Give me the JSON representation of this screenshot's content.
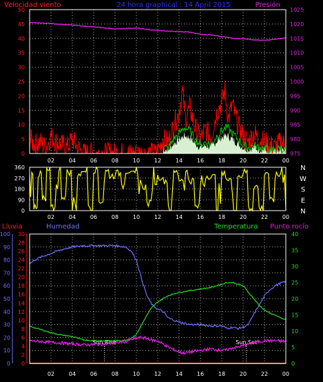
{
  "header": {
    "left_label": "Velocidad viento",
    "title": "24 hora graphical : 14 April 2015",
    "right_label": "Presión"
  },
  "colors": {
    "wind_left_axis": "#ff2020",
    "wind_series": "#ff0000",
    "gust_series": "#00d000",
    "wind_band": "#d8f0d0",
    "pressure": "#e020e0",
    "title": "#3030ff",
    "direction": "#ffff00",
    "rain": "#ff2020",
    "humidity": "#7070ff",
    "temperature": "#20e020",
    "dewpoint": "#e020e0",
    "axis_text": "#ffffff",
    "grid": "#ffffff"
  },
  "chart_data": [
    {
      "type": "line",
      "panel": "wind_pressure",
      "xlabel": "",
      "x_ticks": [
        "02",
        "04",
        "06",
        "08",
        "10",
        "12",
        "14",
        "16",
        "18",
        "20",
        "22",
        "00"
      ],
      "y_left": {
        "label": "Velocidad viento",
        "ticks": [
          "0",
          "5",
          "10",
          "15",
          "20",
          "25",
          "30",
          "35",
          "40",
          "45",
          "50"
        ],
        "range": [
          0,
          50
        ]
      },
      "y_right": {
        "label": "Presión",
        "ticks": [
          "975",
          "980",
          "985",
          "990",
          "995",
          "1000",
          "1005",
          "1010",
          "1015",
          "1020",
          "1025"
        ],
        "range": [
          975,
          1025
        ]
      },
      "series": [
        {
          "name": "Presión",
          "axis": "right",
          "x": [
            0,
            2,
            4,
            6,
            8,
            10,
            11,
            12,
            13,
            14,
            15,
            16,
            17,
            18,
            19,
            20,
            21,
            22,
            23,
            24
          ],
          "values": [
            1020.5,
            1020.2,
            1019.6,
            1019.0,
            1018.3,
            1018.6,
            1018.1,
            1017.8,
            1017.5,
            1017.4,
            1017.2,
            1016.5,
            1016.2,
            1015.6,
            1015.1,
            1014.9,
            1014.5,
            1014.3,
            1014.7,
            1015.2
          ]
        },
        {
          "axis": "left",
          "x": [
            0,
            0.5,
            1,
            1.5,
            2,
            2.5,
            3,
            3.5,
            4,
            4.5,
            5,
            10,
            11.9,
            12.5,
            13,
            13.5,
            14,
            14.3,
            14.6,
            15,
            15.5,
            16,
            16.5,
            17,
            17.5,
            18,
            18.3,
            18.6,
            19,
            19.5,
            20,
            20.5,
            21,
            21.5,
            22,
            22.5,
            23,
            23.5,
            24
          ],
          "values": [
            5,
            3,
            4,
            2,
            6,
            4,
            3,
            2,
            5,
            2,
            0,
            0,
            0,
            5,
            4,
            10,
            14,
            22,
            12,
            16,
            9,
            5,
            8,
            6,
            14,
            18,
            22,
            12,
            17,
            10,
            6,
            4,
            7,
            5,
            4,
            3,
            2,
            4,
            3
          ]
        },
        {
          "axis": "left",
          "x": [
            12.5,
            13,
            13.5,
            14,
            14.5,
            15,
            15.5,
            16,
            16.5,
            17,
            17.5,
            18,
            18.5,
            19,
            19.5,
            20,
            20.5,
            21,
            21.5,
            22,
            22.5,
            23,
            23.5,
            24
          ],
          "values": [
            2,
            2,
            5,
            7,
            9,
            8,
            5,
            3,
            4,
            3,
            6,
            8,
            9,
            7,
            5,
            3,
            2,
            3,
            2,
            2,
            1,
            1,
            2,
            1
          ]
        }
      ]
    },
    {
      "type": "line",
      "panel": "wind_direction",
      "x_ticks": [
        "02",
        "04",
        "06",
        "08",
        "10",
        "12",
        "14",
        "16",
        "18",
        "20",
        "22",
        "00"
      ],
      "y_left": {
        "ticks": [
          "0",
          "90",
          "180",
          "270",
          "360"
        ],
        "range": [
          0,
          360
        ]
      },
      "y_right": {
        "ticks": [
          "N",
          "W",
          "S",
          "E",
          "N"
        ]
      },
      "series": [
        {
          "x": [
            0,
            0.4,
            0.8,
            1.2,
            1.6,
            2,
            2.5,
            3,
            3.5,
            4,
            4.5,
            5,
            5.5,
            6,
            6.5,
            7,
            7.5,
            8,
            8.5,
            9,
            9.5,
            10,
            10.5,
            11,
            11.5,
            12,
            12.5,
            13,
            13.5,
            14,
            14.5,
            15,
            15.5,
            16,
            16.5,
            17,
            17.5,
            18,
            18.5,
            19,
            19.5,
            20,
            20.5,
            21,
            21.5,
            22,
            22.5,
            23,
            23.5,
            24
          ],
          "values": [
            240,
            40,
            300,
            60,
            330,
            20,
            280,
            120,
            320,
            40,
            300,
            340,
            60,
            340,
            80,
            300,
            290,
            310,
            300,
            330,
            300,
            260,
            200,
            60,
            300,
            280,
            250,
            40,
            320,
            260,
            280,
            250,
            30,
            240,
            290,
            280,
            100,
            300,
            260,
            40,
            290,
            320,
            60,
            200,
            20,
            330,
            80,
            290,
            340,
            10
          ]
        }
      ]
    },
    {
      "type": "line",
      "panel": "humidity_temperature",
      "x_ticks": [
        "02",
        "04",
        "06",
        "08",
        "10",
        "12",
        "14",
        "16",
        "18",
        "20",
        "22",
        "00"
      ],
      "labels": {
        "rain": "Lluvia",
        "humidity": "Humedad",
        "temperature": "Temperatura",
        "dewpoint": "Punto rocío"
      },
      "y_humidity": {
        "ticks": [
          "0",
          "10",
          "20",
          "30",
          "40",
          "50",
          "60",
          "70",
          "80",
          "90",
          "100"
        ],
        "range": [
          0,
          100
        ]
      },
      "y_rain": {
        "ticks": [
          "0",
          "2",
          "4",
          "6",
          "8",
          "10",
          "12",
          "14",
          "16",
          "18",
          "20",
          "22",
          "24",
          "26",
          "28",
          "30"
        ],
        "range": [
          0,
          30
        ]
      },
      "y_temperature": {
        "ticks": [
          "0",
          "5",
          "10",
          "15",
          "20",
          "25",
          "30",
          "35",
          "40"
        ],
        "range": [
          0,
          40
        ]
      },
      "annotations": [
        {
          "text": "Sun Rise",
          "x": 7.0
        },
        {
          "text": "Sun Set",
          "x": 20.3
        }
      ],
      "series": [
        {
          "name": "Humedad",
          "x": [
            0,
            0.5,
            1,
            2,
            3,
            4,
            5,
            6,
            7,
            8,
            9,
            9.5,
            10,
            10.5,
            11,
            11.5,
            12,
            12.5,
            13,
            14,
            15,
            16,
            17,
            18,
            18.5,
            19,
            19.5,
            20,
            20.5,
            21,
            21.5,
            22,
            22.5,
            23,
            23.5,
            24
          ],
          "values": [
            77,
            80,
            82,
            85,
            88,
            90,
            91,
            91,
            91,
            91,
            90,
            87,
            80,
            65,
            52,
            45,
            42,
            40,
            35,
            32,
            30,
            30,
            29,
            29,
            27,
            28,
            27,
            28,
            30,
            38,
            45,
            52,
            57,
            60,
            62,
            63
          ]
        },
        {
          "name": "Temperatura",
          "x": [
            0,
            1,
            2,
            3,
            4,
            5,
            6,
            7,
            8,
            9,
            9.5,
            10,
            10.5,
            11,
            11.5,
            12,
            12.5,
            13,
            13.5,
            14,
            15,
            16,
            17,
            18,
            18.5,
            19,
            19.5,
            20,
            20.5,
            21,
            21.5,
            22,
            22.5,
            23,
            23.5,
            24
          ],
          "values": [
            11.5,
            10.5,
            9.5,
            8.8,
            8.3,
            7.3,
            7.0,
            7.0,
            7.0,
            7.2,
            7.8,
            9.0,
            12.0,
            15.0,
            17.5,
            19.0,
            20.0,
            21.0,
            21.5,
            22.0,
            22.5,
            23.0,
            23.5,
            24.5,
            25.0,
            25.0,
            24.5,
            24.0,
            22.0,
            20.0,
            18.0,
            16.5,
            15.5,
            15.0,
            14.0,
            13.5
          ]
        },
        {
          "name": "Punto rocío",
          "x": [
            0,
            1,
            2,
            3,
            4,
            5,
            6,
            7,
            8,
            9,
            9.5,
            10,
            10.5,
            11,
            11.5,
            12,
            12.5,
            13,
            13.5,
            14,
            14.5,
            15,
            16,
            17,
            18,
            18.5,
            19,
            19.5,
            20,
            20.5,
            21,
            22,
            23,
            24
          ],
          "values": [
            7.0,
            6.8,
            6.5,
            6.3,
            6.0,
            5.8,
            5.8,
            6.0,
            6.3,
            6.8,
            7.3,
            7.8,
            8.0,
            7.7,
            7.2,
            7.0,
            6.0,
            5.0,
            4.3,
            3.5,
            3.2,
            3.5,
            4.0,
            4.5,
            4.0,
            4.2,
            4.8,
            5.0,
            5.5,
            6.0,
            6.5,
            7.0,
            7.0,
            6.8
          ]
        },
        {
          "name": "Lluvia",
          "x": [
            0,
            24
          ],
          "values": [
            0,
            0
          ]
        }
      ]
    }
  ]
}
